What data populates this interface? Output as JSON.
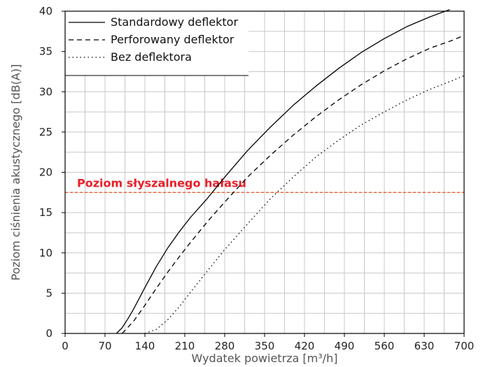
{
  "chart_data": {
    "type": "line",
    "xlabel": "Wydatek powietrza [m³/h]",
    "ylabel": "Poziom ciśnienia akustycznego [dB(A)]",
    "xlim": [
      0,
      700
    ],
    "ylim": [
      0,
      40
    ],
    "x_ticks": [
      0,
      70,
      140,
      210,
      280,
      350,
      420,
      490,
      560,
      630,
      700
    ],
    "y_ticks": [
      0,
      5,
      10,
      15,
      20,
      25,
      30,
      35,
      40
    ],
    "grid": true,
    "legend_position": "top-left",
    "threshold": {
      "label": "Poziom słyszalnego hałasu",
      "y": 17.5,
      "color": "#e8602a",
      "label_color": "#e8202a"
    },
    "series": [
      {
        "name": "Standardowy deflektor",
        "style": "solid",
        "color": "#000000",
        "x": [
          90,
          100,
          110,
          120,
          140,
          160,
          180,
          200,
          220,
          250,
          280,
          320,
          360,
          400,
          440,
          480,
          520,
          560,
          600,
          640,
          675
        ],
        "y": [
          0,
          0.7,
          1.8,
          3.0,
          5.7,
          8.3,
          10.6,
          12.6,
          14.4,
          16.8,
          19.4,
          22.7,
          25.6,
          28.3,
          30.7,
          32.9,
          34.9,
          36.6,
          38.1,
          39.3,
          40.2
        ]
      },
      {
        "name": "Perforowany deflektor",
        "style": "dashed",
        "color": "#000000",
        "x": [
          100,
          120,
          140,
          160,
          180,
          200,
          220,
          250,
          280,
          320,
          360,
          400,
          440,
          480,
          520,
          560,
          600,
          640,
          680,
          700
        ],
        "y": [
          0,
          1.5,
          3.5,
          5.6,
          7.6,
          9.5,
          11.3,
          13.9,
          16.3,
          19.4,
          22.1,
          24.6,
          26.9,
          29.0,
          30.9,
          32.6,
          34.1,
          35.4,
          36.4,
          37.0
        ]
      },
      {
        "name": "Bez deflektora",
        "style": "dotted",
        "color": "#000000",
        "x": [
          140,
          160,
          180,
          200,
          220,
          250,
          280,
          320,
          360,
          400,
          440,
          480,
          520,
          560,
          600,
          640,
          680,
          700
        ],
        "y": [
          0,
          0.5,
          1.7,
          3.3,
          5.1,
          7.8,
          10.4,
          13.6,
          16.7,
          19.4,
          21.9,
          24.0,
          25.9,
          27.5,
          29.0,
          30.3,
          31.4,
          32.0
        ]
      }
    ]
  }
}
